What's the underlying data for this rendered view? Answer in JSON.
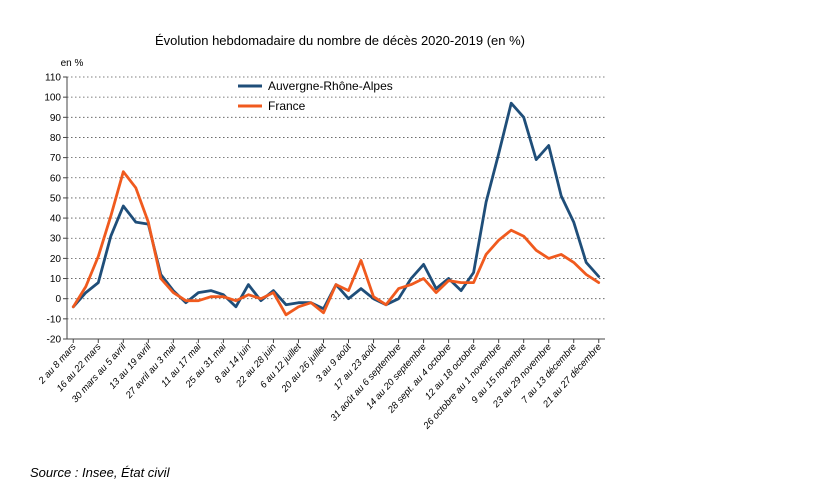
{
  "chart_data": {
    "type": "line",
    "title": "Évolution hebdomadaire du nombre de décès 2020-2019 (en %)",
    "ylabel": "en %",
    "xlabel": "",
    "ylim": [
      -20,
      110
    ],
    "yticks": [
      -20,
      -10,
      0,
      10,
      20,
      30,
      40,
      50,
      60,
      70,
      80,
      90,
      100,
      110
    ],
    "grid": "horizontal dotted",
    "legend_position": "top-center",
    "x_tick_labels": [
      "2 au 8 mars",
      "16 au 22 mars",
      "30 mars au 5 avril",
      "13 au 19 avril",
      "27 avril au 3 mai",
      "11 au 17 mai",
      "25 au 31 mai",
      "8 au 14 juin",
      "22 au 28 juin",
      "6 au 12 juillet",
      "20 au 26 juillet",
      "3 au 9 août",
      "17 au 23 août",
      "31 août au 6 septembre",
      "14 au 20 septembre",
      "28 sept. au 4 octobre",
      "12 au 18 octobre",
      "26 octobre au 1 novembre",
      "9 au 15 novembre",
      "23 au 29 novembre",
      "7 au 13 décembre",
      "21 au 27 décembre"
    ],
    "series": [
      {
        "name": "Auvergne-Rhône-Alpes",
        "color": "#1f4e79",
        "values": [
          -4,
          3,
          8,
          31,
          46,
          38,
          37,
          12,
          4,
          -2,
          3,
          4,
          2,
          -4,
          7,
          -1,
          4,
          -3,
          -2,
          -2,
          -5,
          7,
          0,
          5,
          0,
          -3,
          0,
          10,
          17,
          5,
          10,
          4,
          13,
          48,
          72,
          97,
          90,
          69,
          76,
          51,
          38,
          18,
          11
        ]
      },
      {
        "name": "France",
        "color": "#f05a1e",
        "values": [
          -4,
          6,
          21,
          41,
          63,
          55,
          38,
          10,
          3,
          -1,
          -1,
          1,
          1,
          -1,
          2,
          0,
          3,
          -8,
          -4,
          -2,
          -7,
          7,
          4,
          19,
          1,
          -3,
          5,
          7,
          10,
          3,
          9,
          8,
          8,
          22,
          29,
          34,
          31,
          24,
          20,
          22,
          18,
          12,
          8
        ]
      }
    ]
  },
  "source": "Source : Insee, État civil"
}
